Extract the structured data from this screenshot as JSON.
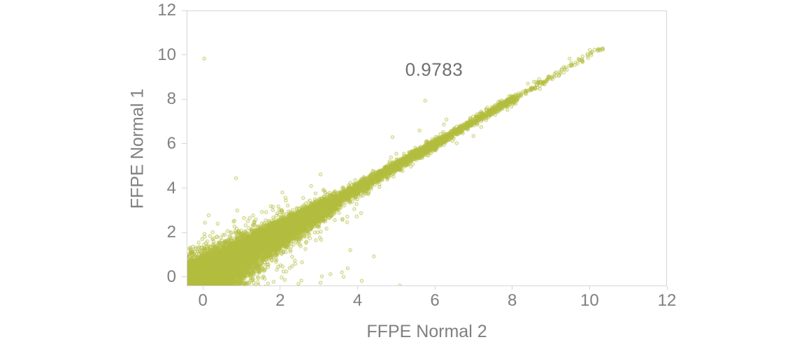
{
  "chart_data": {
    "type": "scatter",
    "title": "",
    "xlabel": "FFPE Normal 2",
    "ylabel": "FFPE Normal 1",
    "xlim": [
      -0.42,
      12
    ],
    "ylim": [
      -0.41,
      12
    ],
    "xticks": [
      0,
      2,
      4,
      6,
      8,
      10,
      12
    ],
    "yticks": [
      0,
      2,
      4,
      6,
      8,
      10,
      12
    ],
    "grid": false,
    "legend": false,
    "annotation": {
      "text": "0.9783",
      "x": 5.96,
      "y": 9.36
    },
    "correlation": 0.9783,
    "description": "Dense correlation scatter of log2 expression values for two FFPE normal replicates; ~16000 open-circle points hugging the y=x diagonal from about (-0.4,-0.4) to (10.3,10.2), spread widest near the origin and narrowing at high values, Pearson r = 0.9783.",
    "marker": {
      "shape": "open-circle",
      "color": "#b2bd3e",
      "radius_px": 2.1,
      "stroke_px": 1,
      "opacity": 0.9
    },
    "colors": {
      "axis_line": "#d6d6d6",
      "tick_label": "#808080",
      "axis_title": "#808080",
      "annotation_text": "#6e6e6e",
      "background": "#ffffff"
    },
    "generator": {
      "seed": 42,
      "segments": [
        {
          "n": 12000,
          "t_min": -0.45,
          "t_max": 3.2,
          "power": 2.0
        },
        {
          "n": 3400,
          "t_min": 1.5,
          "t_max": 6.2,
          "power": 1.6
        },
        {
          "n": 900,
          "t_min": 5.5,
          "t_max": 8.1,
          "power": 1.2
        },
        {
          "n": 135,
          "t_min": 8.0,
          "t_max": 10.35,
          "power": 1.4
        }
      ],
      "noise": {
        "base": 0.42,
        "decay": 2.2,
        "floor": 0.05,
        "tail3x_prob": 0.02,
        "tail6x_prob": 0.003
      },
      "outliers": [
        [
          5.75,
          7.95
        ],
        [
          4.9,
          6.3
        ],
        [
          2.05,
          0.45
        ],
        [
          2.5,
          1.45
        ],
        [
          1.15,
          2.5
        ],
        [
          5.6,
          6.6
        ],
        [
          0.35,
          1.8
        ],
        [
          1.8,
          3.0
        ],
        [
          7.0,
          6.35
        ],
        [
          3.6,
          2.6
        ],
        [
          6.3,
          7.1
        ],
        [
          0.9,
          -0.3
        ],
        [
          1.9,
          0.3
        ],
        [
          5.0,
          5.55
        ]
      ]
    }
  }
}
